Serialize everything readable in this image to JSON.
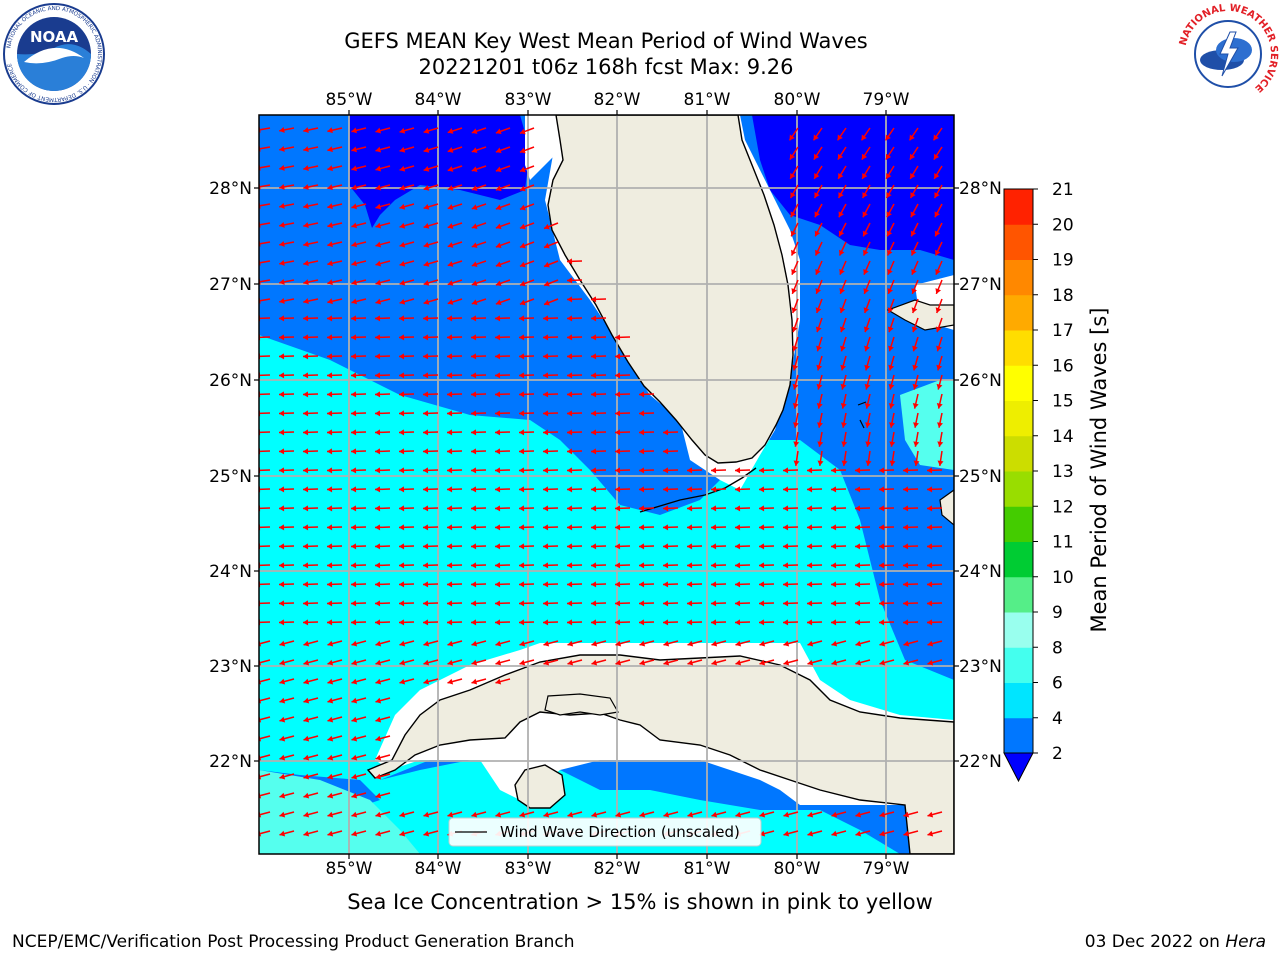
{
  "title": {
    "line1": "GEFS MEAN Key West Mean Period of Wind Waves",
    "line2": "20221201 t06z 168h fcst   Max: 9.26"
  },
  "axes": {
    "lon_labels": [
      "85°W",
      "84°W",
      "83°W",
      "82°W",
      "81°W",
      "80°W",
      "79°W"
    ],
    "lat_labels": [
      "28°N",
      "27°N",
      "26°N",
      "25°N",
      "24°N",
      "23°N",
      "22°N"
    ],
    "lon_range": [
      -86.0,
      -78.3
    ],
    "lat_range": [
      21.0,
      28.75
    ]
  },
  "legend": {
    "arrow_label": "Wind Wave Direction (unscaled)"
  },
  "colorbar": {
    "label": "Mean Period of Wind Waves [s]",
    "ticks": [
      "2",
      "4",
      "6",
      "8",
      "9",
      "10",
      "11",
      "12",
      "13",
      "14",
      "15",
      "16",
      "17",
      "18",
      "19",
      "20",
      "21"
    ],
    "colors": [
      "#0077ff",
      "#00e5ff",
      "#44ffee",
      "#99ffee",
      "#55ee88",
      "#00cc33",
      "#44cc00",
      "#99dd00",
      "#ccdd00",
      "#eeee00",
      "#ffff00",
      "#ffdd00",
      "#ffaa00",
      "#ff8800",
      "#ff5500",
      "#ff2200"
    ],
    "extend_color": "#0000ff"
  },
  "colors": {
    "land": "#efede0",
    "ocean_deep": "#0000ff",
    "ocean_2_4": "#0077ff",
    "ocean_4_6": "#00ffff",
    "ocean_6_8": "#55ffee",
    "arrow": "#ff0000",
    "grid": "#b0b0b0"
  },
  "sea_ice_note": "Sea Ice Concentration > 15% is shown in pink to yellow",
  "footer": {
    "left": "NCEP/EMC/Verification Post Processing Product Generation Branch",
    "right_date": "03 Dec 2022 on",
    "right_host": "Hera"
  },
  "logos": {
    "noaa_text": "NOAA",
    "noaa_ring_text": "NATIONAL OCEANIC AND ATMOSPHERIC ADMINISTRATION · U.S. DEPARTMENT OF COMMERCE",
    "nws_ring_text": "NATIONAL WEATHER SERVICE"
  }
}
